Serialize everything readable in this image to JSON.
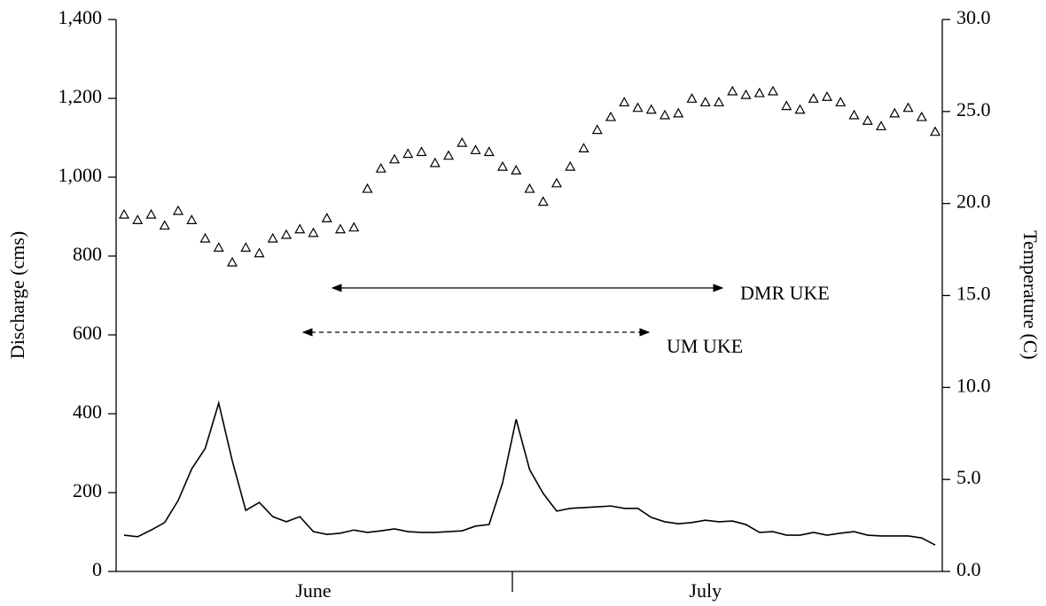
{
  "chart_data": {
    "type": "line",
    "y_label": "Discharge (cms)",
    "y2_label": "Temperature (C)",
    "categories": [
      null,
      null,
      null,
      null,
      null,
      null,
      null,
      null,
      null,
      null,
      null,
      null,
      null,
      null,
      "June",
      null,
      null,
      null,
      null,
      null,
      null,
      null,
      null,
      null,
      null,
      null,
      null,
      null,
      null,
      null,
      null,
      null,
      null,
      null,
      null,
      null,
      null,
      null,
      null,
      null,
      null,
      null,
      null,
      "July",
      null,
      null,
      null,
      null,
      null,
      null,
      null,
      null,
      null,
      null,
      null,
      null,
      null,
      null,
      null,
      null,
      null
    ],
    "series": [
      {
        "color": "#000000",
        "marker": "none",
        "values": [
          92,
          88,
          105,
          124,
          180,
          260,
          312,
          427,
          281,
          155,
          175,
          139,
          126,
          139,
          101,
          94,
          97,
          105,
          99,
          103,
          108,
          101,
          99,
          99,
          101,
          103,
          115,
          119,
          225,
          386,
          258,
          198,
          153,
          160,
          162,
          164,
          166,
          160,
          160,
          137,
          126,
          121,
          124,
          130,
          126,
          128,
          119,
          99,
          101,
          92,
          92,
          99,
          92,
          97,
          101,
          92,
          90,
          90,
          90,
          85,
          67
        ]
      },
      {
        "color": "#000000",
        "marker": "triangle",
        "axis": "y2",
        "values": [
          19.4,
          19.1,
          19.4,
          18.8,
          19.6,
          19.1,
          18.1,
          17.6,
          16.8,
          17.6,
          17.3,
          18.1,
          18.3,
          18.6,
          18.4,
          19.2,
          18.6,
          18.7,
          20.8,
          21.9,
          22.4,
          22.7,
          22.8,
          22.2,
          22.6,
          23.3,
          22.9,
          22.8,
          22.0,
          21.8,
          20.8,
          20.1,
          21.1,
          22.0,
          23.0,
          24.0,
          24.7,
          25.5,
          25.2,
          25.1,
          24.8,
          24.9,
          25.7,
          25.5,
          25.5,
          26.1,
          25.9,
          26.0,
          26.1,
          25.3,
          25.1,
          25.7,
          25.8,
          25.5,
          24.8,
          24.5,
          24.2,
          24.9,
          25.2,
          24.7,
          23.9
        ]
      }
    ],
    "annotations": [
      "DMR UKE",
      "UM UKE"
    ],
    "ylim": [
      0,
      1400
    ],
    "yticks": [
      0,
      {
        "value": 200,
        "label": "200"
      },
      400,
      600,
      800,
      {
        "value": 1000,
        "label": "1,000"
      },
      {
        "value": 1200,
        "label": "1,200"
      },
      {
        "value": 1400,
        "label": "1,400"
      }
    ],
    "y2lim": [
      0,
      30
    ],
    "y2ticks": [
      {
        "value": 0,
        "label": "0.0"
      },
      {
        "value": 5,
        "label": "5.0"
      },
      {
        "value": 10,
        "label": "10.0"
      },
      {
        "value": 15,
        "label": "15.0"
      },
      {
        "value": 20,
        "label": "20.0"
      },
      {
        "value": 25,
        "label": "25.0"
      },
      {
        "value": 30,
        "label": "30.0"
      }
    ],
    "grid": false
  }
}
